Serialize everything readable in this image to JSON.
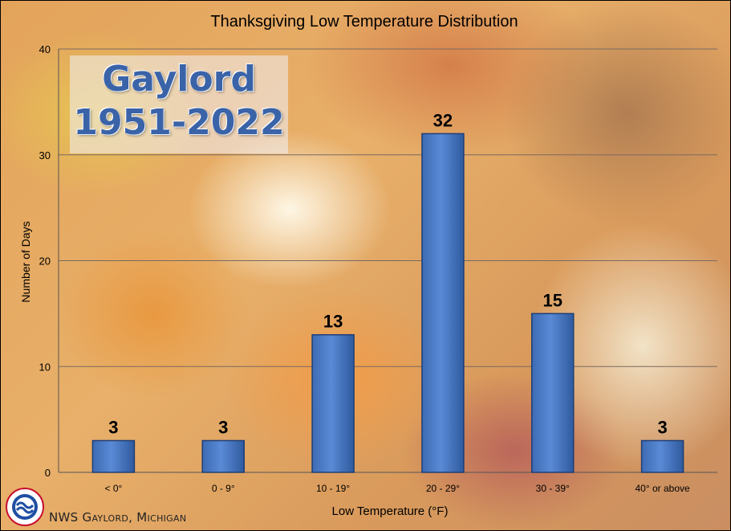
{
  "chart_data": {
    "type": "bar",
    "title": "Thanksgiving Low Temperature Distribution",
    "xlabel": "Low Temperature (°F)",
    "ylabel": "Number of Days",
    "categories": [
      "< 0°",
      "0 - 9°",
      "10 - 19°",
      "20 - 29°",
      "30 - 39°",
      "40° or above"
    ],
    "values": [
      3,
      3,
      13,
      32,
      15,
      3
    ],
    "ylim": [
      0,
      40
    ],
    "yticks": [
      0,
      10,
      20,
      30,
      40
    ],
    "grid": true,
    "bar_color": "#4a7bc8"
  },
  "overlay": {
    "location": "Gaylord",
    "years": "1951-2022"
  },
  "credit": "NWS Gaylord, Michigan"
}
